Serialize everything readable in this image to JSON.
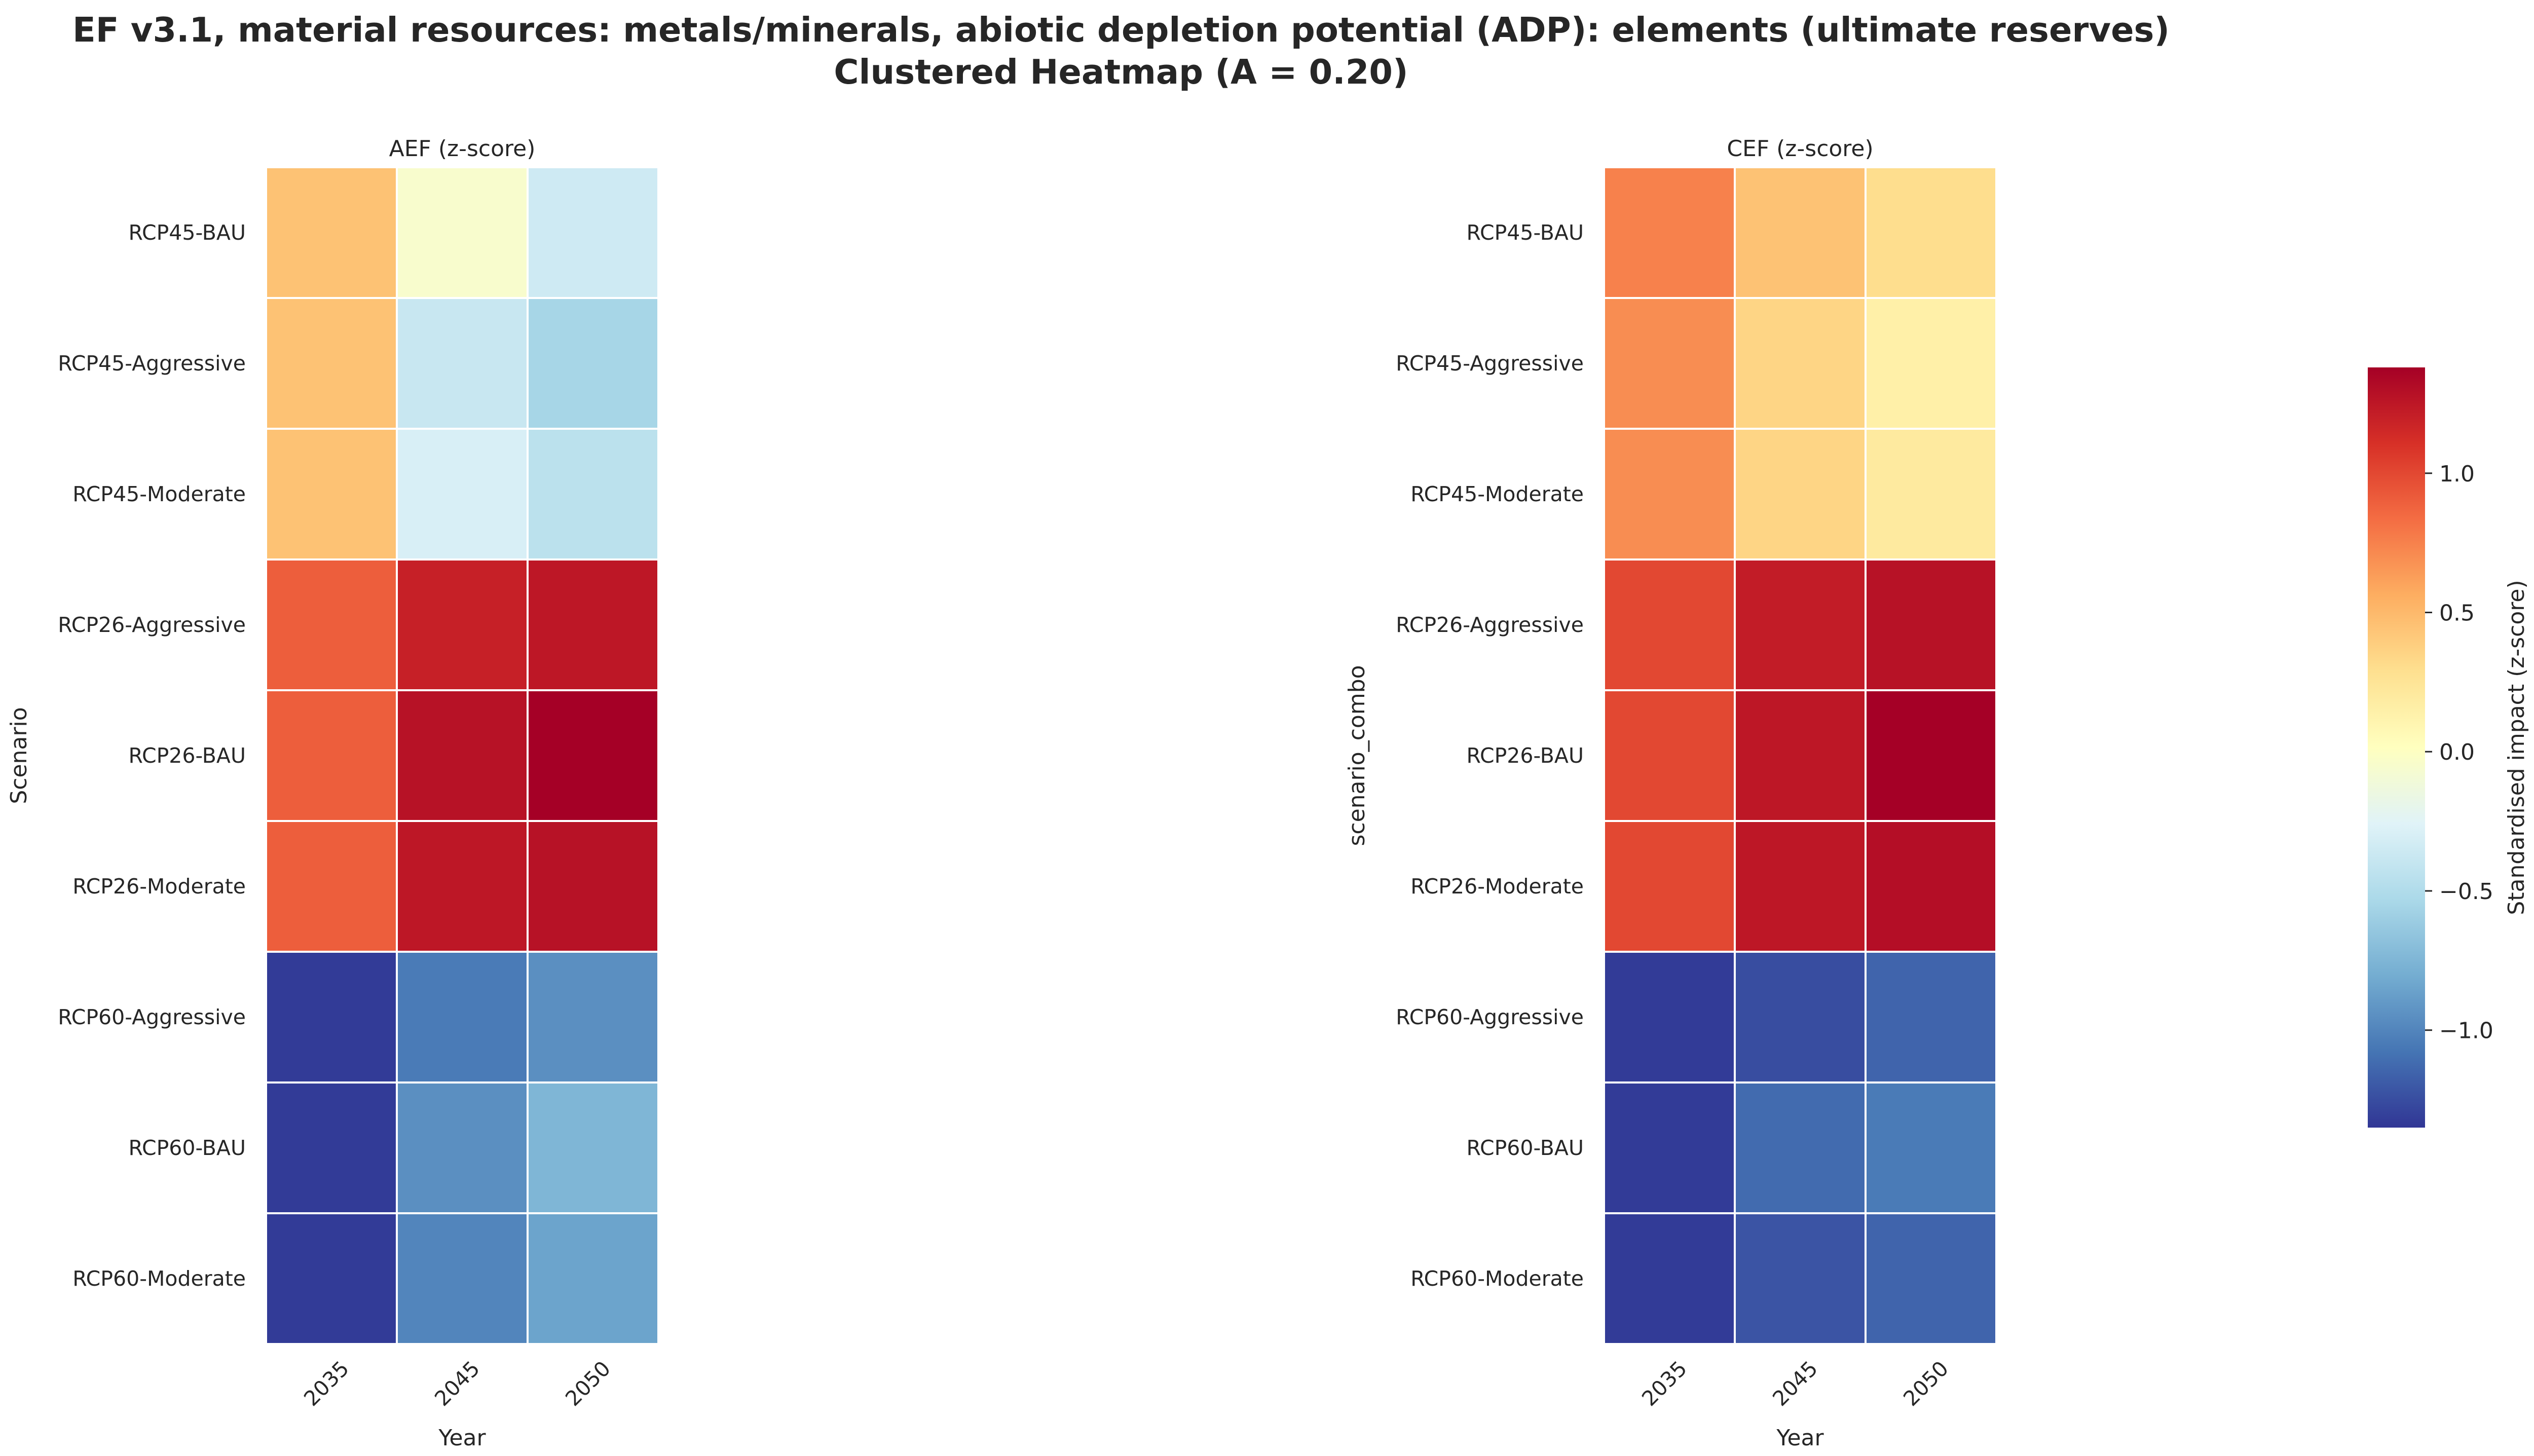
{
  "title": "EF v3.1, material resources: metals/minerals, abiotic depletion potential (ADP): elements (ultimate reserves)",
  "subtitle": "Clustered Heatmap (A = 0.20)",
  "chart_data": [
    {
      "type": "heatmap",
      "title": "AEF (z-score)",
      "xlabel": "Year",
      "ylabel": "Scenario",
      "columns": [
        "2035",
        "2045",
        "2050"
      ],
      "rows": [
        "RCP45-BAU",
        "RCP45-Aggressive",
        "RCP45-Moderate",
        "RCP26-Aggressive",
        "RCP26-BAU",
        "RCP26-Moderate",
        "RCP60-Aggressive",
        "RCP60-BAU",
        "RCP60-Moderate"
      ],
      "values": [
        [
          0.45,
          -0.05,
          -0.35
        ],
        [
          0.45,
          -0.38,
          -0.55
        ],
        [
          0.45,
          -0.3,
          -0.45
        ],
        [
          0.9,
          1.2,
          1.25
        ],
        [
          0.9,
          1.28,
          1.38
        ],
        [
          0.9,
          1.25,
          1.28
        ],
        [
          -1.33,
          -1.05,
          -0.95
        ],
        [
          -1.33,
          -0.95,
          -0.75
        ],
        [
          -1.33,
          -1.0,
          -0.85
        ]
      ]
    },
    {
      "type": "heatmap",
      "title": "CEF (z-score)",
      "xlabel": "Year",
      "ylabel": "scenario_combo",
      "columns": [
        "2035",
        "2045",
        "2050"
      ],
      "rows": [
        "RCP45-BAU",
        "RCP45-Aggressive",
        "RCP45-Moderate",
        "RCP26-Aggressive",
        "RCP26-BAU",
        "RCP26-Moderate",
        "RCP60-Aggressive",
        "RCP60-BAU",
        "RCP60-Moderate"
      ],
      "values": [
        [
          0.75,
          0.45,
          0.3
        ],
        [
          0.7,
          0.35,
          0.15
        ],
        [
          0.7,
          0.35,
          0.2
        ],
        [
          1.0,
          1.22,
          1.28
        ],
        [
          1.0,
          1.25,
          1.38
        ],
        [
          1.0,
          1.25,
          1.3
        ],
        [
          -1.33,
          -1.25,
          -1.15
        ],
        [
          -1.33,
          -1.12,
          -1.05
        ],
        [
          -1.33,
          -1.22,
          -1.15
        ]
      ]
    }
  ],
  "colorbar": {
    "label": "Standardised impact (z-score)",
    "vmin": -1.35,
    "vmax": 1.38,
    "ticks": [
      1.0,
      0.5,
      0.0,
      -0.5,
      -1.0
    ],
    "tick_labels": [
      "1.0",
      "0.5",
      "0.0",
      "−0.5",
      "−1.0"
    ],
    "colormap": "RdYlBu_r",
    "stops": [
      "#313695",
      "#4575b4",
      "#74add1",
      "#abd9e9",
      "#e0f3f8",
      "#ffffbf",
      "#fee090",
      "#fdae61",
      "#f46d43",
      "#d73027",
      "#a50026"
    ]
  }
}
